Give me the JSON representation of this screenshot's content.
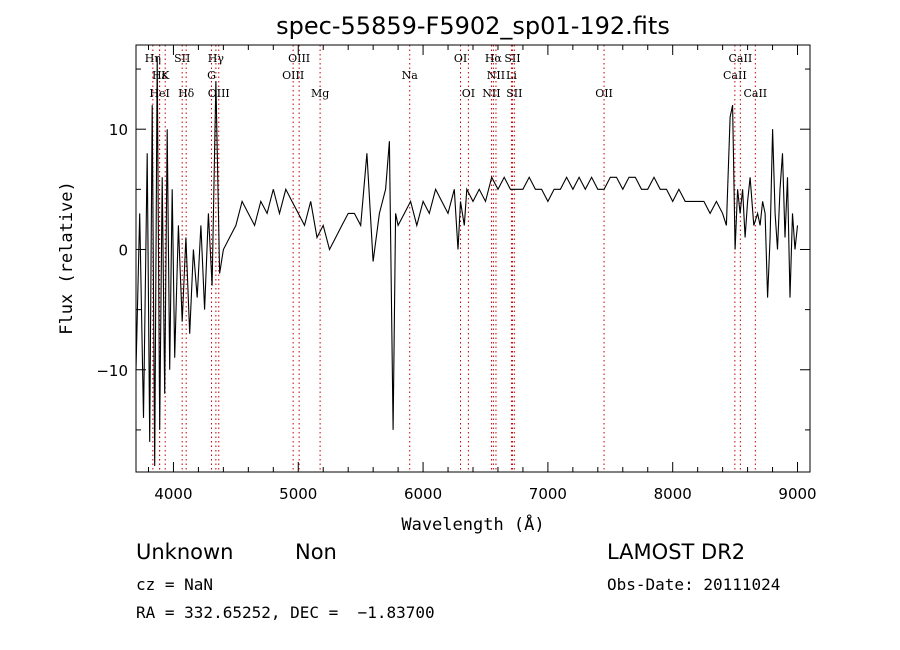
{
  "chart_data": {
    "type": "line",
    "title": "spec-55859-F5902_sp01-192.fits",
    "xlabel": "Wavelength (Å)",
    "ylabel": "Flux (relative)",
    "xlim": [
      3700,
      9100
    ],
    "ylim": [
      -18.5,
      17
    ],
    "x_ticks": [
      4000,
      5000,
      6000,
      7000,
      8000,
      9000
    ],
    "y_ticks": [
      -10,
      0,
      10
    ],
    "grid": false,
    "legend": "none",
    "line_color": "#000000",
    "line_marker_color": "#cc0000",
    "series": [
      {
        "x": [
          3700,
          3730,
          3760,
          3790,
          3810,
          3830,
          3850,
          3870,
          3890,
          3910,
          3930,
          3950,
          3970,
          3990,
          4010,
          4040,
          4070,
          4100,
          4130,
          4160,
          4190,
          4220,
          4250,
          4280,
          4310,
          4340,
          4370,
          4400,
          4450,
          4500,
          4550,
          4600,
          4650,
          4700,
          4750,
          4800,
          4850,
          4900,
          4950,
          5000,
          5050,
          5100,
          5150,
          5200,
          5250,
          5300,
          5350,
          5400,
          5450,
          5500,
          5550,
          5600,
          5650,
          5700,
          5730,
          5760,
          5780,
          5800,
          5850,
          5900,
          5950,
          6000,
          6050,
          6100,
          6150,
          6200,
          6250,
          6280,
          6300,
          6330,
          6350,
          6400,
          6450,
          6500,
          6550,
          6600,
          6650,
          6700,
          6750,
          6800,
          6850,
          6900,
          6950,
          7000,
          7050,
          7100,
          7150,
          7200,
          7250,
          7300,
          7350,
          7400,
          7450,
          7500,
          7550,
          7600,
          7650,
          7700,
          7750,
          7800,
          7850,
          7900,
          7950,
          8000,
          8050,
          8100,
          8150,
          8200,
          8250,
          8300,
          8350,
          8400,
          8430,
          8460,
          8480,
          8500,
          8520,
          8540,
          8560,
          8580,
          8600,
          8620,
          8650,
          8680,
          8700,
          8720,
          8740,
          8760,
          8780,
          8800,
          8820,
          8840,
          8860,
          8880,
          8900,
          8920,
          8940,
          8960,
          8980,
          9000
        ],
        "y": [
          -10,
          3,
          -14,
          8,
          -16,
          12,
          -18,
          16,
          -15,
          6,
          -12,
          10,
          -10,
          5,
          -9,
          2,
          -6,
          1,
          -7,
          0,
          -4,
          2,
          -5,
          3,
          -3,
          14,
          -2,
          0,
          1,
          2,
          4,
          3,
          2,
          4,
          3,
          5,
          3,
          5,
          4,
          3,
          2,
          4,
          1,
          2,
          0,
          1,
          2,
          3,
          3,
          2,
          8,
          -1,
          3,
          5,
          9,
          -15,
          3,
          2,
          3,
          4,
          2,
          4,
          3,
          5,
          4,
          3,
          5,
          0,
          4,
          2,
          5,
          4,
          5,
          4,
          6,
          5,
          6,
          5,
          5,
          5,
          6,
          5,
          5,
          4,
          5,
          5,
          6,
          5,
          6,
          5,
          6,
          5,
          5,
          6,
          6,
          5,
          6,
          6,
          5,
          5,
          6,
          5,
          5,
          4,
          5,
          4,
          4,
          4,
          4,
          3,
          4,
          3,
          2,
          11,
          12,
          0,
          5,
          3,
          5,
          1,
          4,
          6,
          2,
          3,
          2,
          4,
          3,
          -4,
          1,
          10,
          3,
          0,
          5,
          8,
          1,
          6,
          -4,
          3,
          0,
          2
        ]
      }
    ],
    "lines": [
      {
        "wl": 3835,
        "label": "Hη",
        "row": 0
      },
      {
        "wl": 3889,
        "label": "Hε",
        "row": 1
      },
      {
        "wl": 3934,
        "label": "K",
        "row": 1
      },
      {
        "wl": 3889,
        "label": "HeI",
        "row": 2
      },
      {
        "wl": 4070,
        "label": "SII",
        "row": 0
      },
      {
        "wl": 4102,
        "label": "Hδ",
        "row": 2
      },
      {
        "wl": 4340,
        "label": "Hγ",
        "row": 0
      },
      {
        "wl": 4305,
        "label": "G",
        "row": 1
      },
      {
        "wl": 4363,
        "label": "OIII",
        "row": 2
      },
      {
        "wl": 5007,
        "label": "OIII",
        "row": 0
      },
      {
        "wl": 4959,
        "label": "OIII",
        "row": 1
      },
      {
        "wl": 5175,
        "label": "Mg",
        "row": 2
      },
      {
        "wl": 5893,
        "label": "Na",
        "row": 1
      },
      {
        "wl": 6300,
        "label": "OI",
        "row": 0
      },
      {
        "wl": 6363,
        "label": "OI",
        "row": 2
      },
      {
        "wl": 6563,
        "label": "Hα",
        "row": 0
      },
      {
        "wl": 6584,
        "label": "NII",
        "row": 1
      },
      {
        "wl": 6548,
        "label": "NII",
        "row": 2
      },
      {
        "wl": 6716,
        "label": "SII",
        "row": 0
      },
      {
        "wl": 6708,
        "label": "Li",
        "row": 1
      },
      {
        "wl": 6731,
        "label": "SII",
        "row": 2
      },
      {
        "wl": 7450,
        "label": "OII",
        "row": 2
      },
      {
        "wl": 8542,
        "label": "CaII",
        "row": 0
      },
      {
        "wl": 8498,
        "label": "CaII",
        "row": 1
      },
      {
        "wl": 8662,
        "label": "CaII",
        "row": 2
      }
    ]
  },
  "info": {
    "class": "Unknown",
    "subclass": "Non",
    "survey": "LAMOST DR2",
    "cz": "cz = NaN",
    "obs_date": "Obs-Date: 20111024",
    "coords": "RA = 332.65252, DEC =  −1.83700"
  }
}
